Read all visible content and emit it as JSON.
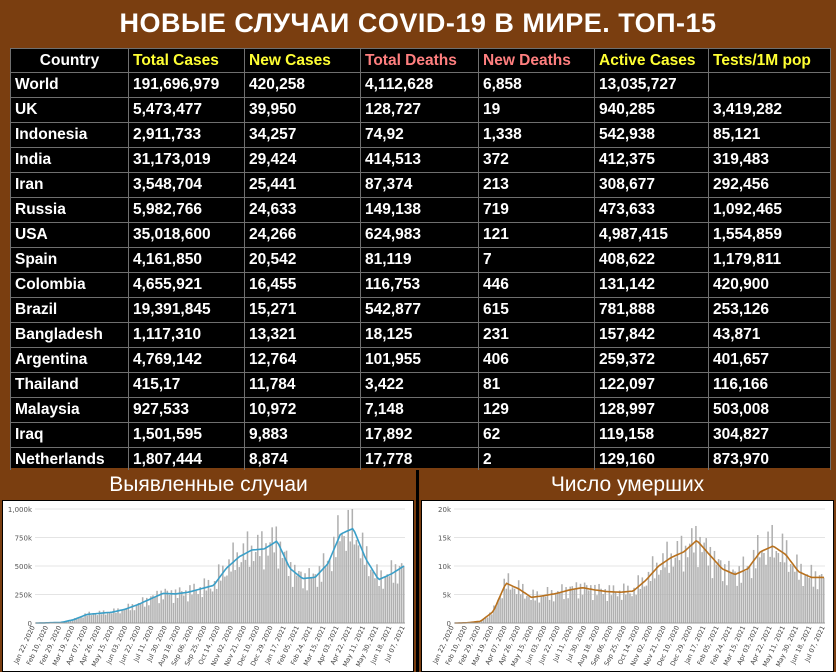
{
  "title": "НОВЫЕ СЛУЧАИ COVID-19 В МИРЕ. ТОП-15",
  "table": {
    "headers": [
      "Country",
      "Total Cases",
      "New Cases",
      "Total Deaths",
      "New Deaths",
      "Active Cases",
      "Tests/1M pop"
    ],
    "header_colors": {
      "yellow": "#ffff33",
      "red": "#ff7f7f",
      "white": "#ffffff"
    },
    "rows": [
      [
        "World",
        "191,696,979",
        "420,258",
        "4,112,628",
        "6,858",
        "13,035,727",
        ""
      ],
      [
        "UK",
        "5,473,477",
        "39,950",
        "128,727",
        "19",
        "940,285",
        "3,419,282"
      ],
      [
        "Indonesia",
        "2,911,733",
        "34,257",
        "74,92",
        "1,338",
        "542,938",
        "85,121"
      ],
      [
        "India",
        "31,173,019",
        "29,424",
        "414,513",
        "372",
        "412,375",
        "319,483"
      ],
      [
        "Iran",
        "3,548,704",
        "25,441",
        "87,374",
        "213",
        "308,677",
        "292,456"
      ],
      [
        "Russia",
        "5,982,766",
        "24,633",
        "149,138",
        "719",
        "473,633",
        "1,092,465"
      ],
      [
        "USA",
        "35,018,600",
        "24,266",
        "624,983",
        "121",
        "4,987,415",
        "1,554,859"
      ],
      [
        "Spain",
        "4,161,850",
        "20,542",
        "81,119",
        "7",
        "408,622",
        "1,179,811"
      ],
      [
        "Colombia",
        "4,655,921",
        "16,455",
        "116,753",
        "446",
        "131,142",
        "420,900"
      ],
      [
        "Brazil",
        "19,391,845",
        "15,271",
        "542,877",
        "615",
        "781,888",
        "253,126"
      ],
      [
        "Bangladesh",
        "1,117,310",
        "13,321",
        "18,125",
        "231",
        "157,842",
        "43,871"
      ],
      [
        "Argentina",
        "4,769,142",
        "12,764",
        "101,955",
        "406",
        "259,372",
        "401,657"
      ],
      [
        "Thailand",
        "415,17",
        "11,784",
        "3,422",
        "81",
        "122,097",
        "116,166"
      ],
      [
        "Malaysia",
        "927,533",
        "10,972",
        "7,148",
        "129",
        "128,997",
        "503,008"
      ],
      [
        "Iraq",
        "1,501,595",
        "9,883",
        "17,892",
        "62",
        "119,158",
        "304,827"
      ],
      [
        "Netherlands",
        "1,807,444",
        "8,874",
        "17,778",
        "2",
        "129,160",
        "873,970"
      ]
    ]
  },
  "panels": {
    "cases_title": "Выявленные случаи",
    "deaths_title": "Число умерших"
  },
  "chart_data": [
    {
      "type": "bar",
      "title": "Выявленные случаи",
      "bar_color": "#b0b0b0",
      "line_color": "#3a9fc8",
      "ylim": [
        0,
        1000000
      ],
      "yticks": [
        "0",
        "250k",
        "500k",
        "750k",
        "1,000k"
      ],
      "xticks": [
        "Jan 22, 2020",
        "Feb 10, 2020",
        "Feb 29, 2020",
        "Mar 19, 2020",
        "Apr 07, 2020",
        "Apr 26, 2020",
        "May 15, 2020",
        "Jun 03, 2020",
        "Jun 22, 2020",
        "Jul 11, 2020",
        "Jul 30, 2020",
        "Aug 18, 2020",
        "Sep 06, 2020",
        "Sep 25, 2020",
        "Oct 14, 2020",
        "Nov 02, 2020",
        "Nov 21, 2020",
        "Dec 10, 2020",
        "Dec 29, 2020",
        "Jan 17, 2021",
        "Feb 05, 2021",
        "Feb 24, 2021",
        "Mar 15, 2021",
        "Apr 03, 2021",
        "Apr 22, 2021",
        "May 11, 2021",
        "May 30, 2021",
        "Jun 18, 2021",
        "Jul 07, 2021"
      ],
      "moving_average": [
        0,
        2000,
        5000,
        30000,
        75000,
        85000,
        95000,
        120000,
        160000,
        210000,
        260000,
        255000,
        270000,
        300000,
        330000,
        480000,
        580000,
        640000,
        650000,
        720000,
        480000,
        390000,
        400000,
        520000,
        780000,
        830000,
        560000,
        380000,
        430000,
        500000
      ]
    },
    {
      "type": "bar",
      "title": "Число умерших",
      "bar_color": "#b0b0b0",
      "line_color": "#b8711e",
      "ylim": [
        0,
        20000
      ],
      "yticks": [
        "0",
        "5k",
        "10k",
        "15k",
        "20k"
      ],
      "xticks": [
        "Jan 22, 2020",
        "Feb 10, 2020",
        "Feb 29, 2020",
        "Mar 19, 2020",
        "Apr 07, 2020",
        "Apr 26, 2020",
        "May 15, 2020",
        "Jun 03, 2020",
        "Jun 22, 2020",
        "Jul 11, 2020",
        "Jul 30, 2020",
        "Aug 18, 2020",
        "Sep 06, 2020",
        "Sep 25, 2020",
        "Oct 14, 2020",
        "Nov 02, 2020",
        "Nov 21, 2020",
        "Dec 10, 2020",
        "Dec 29, 2020",
        "Jan 17, 2021",
        "Feb 05, 2021",
        "Feb 24, 2021",
        "Mar 15, 2021",
        "Apr 03, 2021",
        "Apr 22, 2021",
        "May 11, 2021",
        "May 30, 2021",
        "Jun 18, 2021",
        "Jul 07, 2021"
      ],
      "moving_average": [
        0,
        50,
        300,
        2000,
        7000,
        6000,
        4500,
        4800,
        5200,
        5800,
        6200,
        5800,
        5500,
        5400,
        5600,
        7500,
        10000,
        11500,
        12500,
        14500,
        12000,
        9500,
        8500,
        9500,
        12500,
        13500,
        12000,
        9000,
        8000,
        8000
      ]
    }
  ]
}
